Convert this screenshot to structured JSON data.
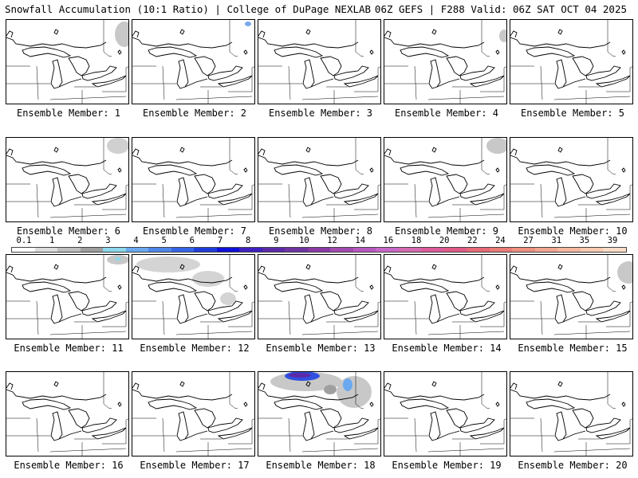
{
  "header": {
    "left": "Snowfall Accumulation (10:1 Ratio) | College of DuPage NEXLAB",
    "right": "06Z GEFS | F288 Valid: 06Z SAT OCT 04 2025"
  },
  "legend": {
    "ticks": [
      "0.1",
      "1",
      "2",
      "3",
      "4",
      "5",
      "6",
      "7",
      "8",
      "9",
      "10",
      "12",
      "14",
      "16",
      "18",
      "20",
      "22",
      "24",
      "27",
      "31",
      "35",
      "39"
    ],
    "colors": [
      "#ffffff",
      "#dcdcdc",
      "#bebebe",
      "#9e9e9e",
      "#8ad8ea",
      "#6aa9f0",
      "#4f86ea",
      "#3664e6",
      "#1f3ddc",
      "#1010d8",
      "#4020c0",
      "#5a2aa8",
      "#6f34a2",
      "#8a3aa6",
      "#a24ab0",
      "#b757bf",
      "#c867c8",
      "#d46ab0",
      "#dc5a9a",
      "#e05a88",
      "#e66a78",
      "#ea7c78",
      "#ee9080",
      "#f2a590",
      "#f5b8a0",
      "#f8cab0",
      "#fbdcc6"
    ]
  },
  "panels": [
    {
      "label": "Ensemble Member: 1",
      "snow": [
        {
          "cx": 148,
          "cy": 18,
          "rx": 12,
          "ry": 16,
          "color": "#c8c8c8"
        }
      ]
    },
    {
      "label": "Ensemble Member: 2",
      "snow": [
        {
          "cx": 145,
          "cy": 5,
          "rx": 4,
          "ry": 3,
          "color": "#7aa8ee"
        }
      ]
    },
    {
      "label": "Ensemble Member: 3",
      "snow": []
    },
    {
      "label": "Ensemble Member: 4",
      "snow": [
        {
          "cx": 150,
          "cy": 20,
          "rx": 6,
          "ry": 8,
          "color": "#c8c8c8"
        }
      ]
    },
    {
      "label": "Ensemble Member: 5",
      "snow": []
    },
    {
      "label": "Ensemble Member: 6",
      "snow": [
        {
          "cx": 140,
          "cy": 10,
          "rx": 14,
          "ry": 10,
          "color": "#d0d0d0"
        }
      ]
    },
    {
      "label": "Ensemble Member: 7",
      "snow": []
    },
    {
      "label": "Ensemble Member: 8",
      "snow": []
    },
    {
      "label": "Ensemble Member: 9",
      "snow": [
        {
          "cx": 142,
          "cy": 10,
          "rx": 14,
          "ry": 10,
          "color": "#c8c8c8"
        }
      ]
    },
    {
      "label": "Ensemble Member: 10",
      "snow": []
    },
    {
      "label": "Ensemble Member: 11",
      "snow": [
        {
          "cx": 140,
          "cy": 6,
          "rx": 14,
          "ry": 6,
          "color": "#c8c8c8"
        },
        {
          "cx": 140,
          "cy": 5,
          "rx": 4,
          "ry": 2,
          "color": "#8ad8ea"
        }
      ]
    },
    {
      "label": "Ensemble Member: 12",
      "snow": [
        {
          "cx": 45,
          "cy": 12,
          "rx": 40,
          "ry": 10,
          "color": "#d4d4d4"
        },
        {
          "cx": 95,
          "cy": 30,
          "rx": 20,
          "ry": 10,
          "color": "#d4d4d4"
        },
        {
          "cx": 120,
          "cy": 55,
          "rx": 10,
          "ry": 8,
          "color": "#d4d4d4"
        }
      ]
    },
    {
      "label": "Ensemble Member: 13",
      "snow": []
    },
    {
      "label": "Ensemble Member: 14",
      "snow": []
    },
    {
      "label": "Ensemble Member: 15",
      "snow": [
        {
          "cx": 148,
          "cy": 22,
          "rx": 14,
          "ry": 14,
          "color": "#c8c8c8"
        }
      ]
    },
    {
      "label": "Ensemble Member: 16",
      "snow": []
    },
    {
      "label": "Ensemble Member: 17",
      "snow": []
    },
    {
      "label": "Ensemble Member: 18",
      "snow": [
        {
          "cx": 60,
          "cy": 12,
          "rx": 45,
          "ry": 12,
          "color": "#c8c8c8"
        },
        {
          "cx": 55,
          "cy": 5,
          "rx": 22,
          "ry": 6,
          "color": "#3050e0"
        },
        {
          "cx": 52,
          "cy": 4,
          "rx": 14,
          "ry": 3,
          "color": "#5a2aa8"
        },
        {
          "cx": 120,
          "cy": 25,
          "rx": 22,
          "ry": 20,
          "color": "#c8c8c8"
        },
        {
          "cx": 112,
          "cy": 16,
          "rx": 6,
          "ry": 8,
          "color": "#6aa9f0"
        },
        {
          "cx": 90,
          "cy": 22,
          "rx": 8,
          "ry": 6,
          "color": "#a0a0a0"
        }
      ]
    },
    {
      "label": "Ensemble Member: 19",
      "snow": []
    },
    {
      "label": "Ensemble Member: 20",
      "snow": []
    }
  ]
}
